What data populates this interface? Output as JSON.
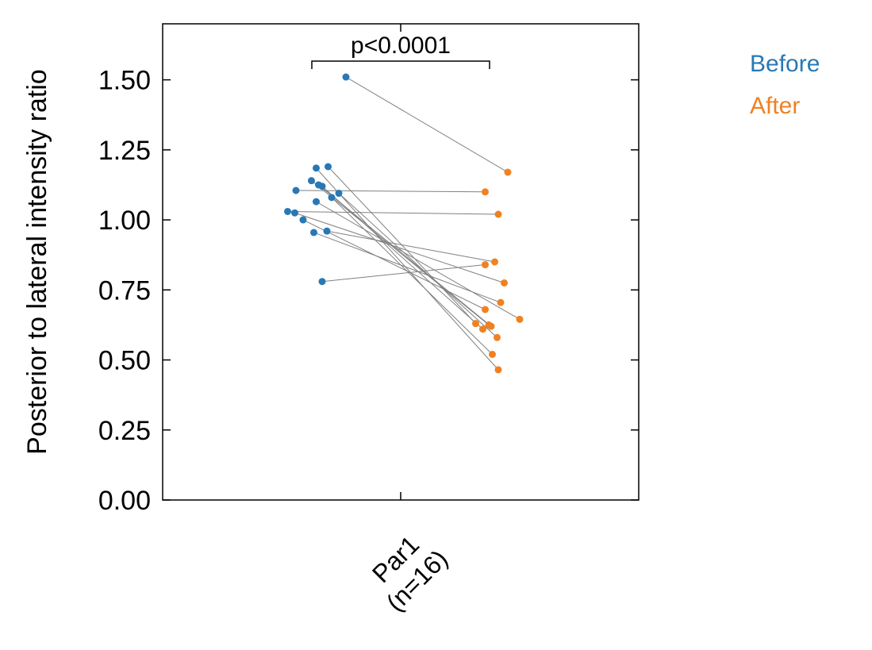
{
  "chart_data": {
    "type": "scatter",
    "subtype": "paired-dot",
    "ylabel": "Posterior to lateral intensity ratio",
    "ylim": [
      0,
      1.7
    ],
    "yticks": [
      "0.00",
      "0.25",
      "0.50",
      "0.75",
      "1.00",
      "1.25",
      "1.50"
    ],
    "category": {
      "line1": "Par1",
      "line2": "(n=16)"
    },
    "significance": "p<0.0001",
    "series": [
      {
        "name": "Before",
        "color": "#2878b5",
        "values": [
          1.51,
          1.19,
          1.185,
          1.14,
          1.125,
          1.12,
          1.095,
          1.08,
          1.065,
          1.105,
          1.03,
          1.025,
          1.0,
          0.96,
          0.955,
          0.78
        ]
      },
      {
        "name": "After",
        "color": "#f08122",
        "values": [
          1.17,
          0.63,
          0.465,
          0.625,
          0.62,
          0.61,
          0.58,
          0.52,
          0.645,
          1.1,
          1.02,
          0.775,
          0.68,
          0.85,
          0.705,
          0.84
        ]
      }
    ],
    "before_jitter": [
      -0.23,
      -0.305,
      -0.355,
      -0.375,
      -0.345,
      -0.33,
      -0.26,
      -0.29,
      -0.355,
      -0.44,
      -0.475,
      -0.445,
      -0.41,
      -0.31,
      -0.365,
      -0.33
    ],
    "after_jitter": [
      0.45,
      0.315,
      0.41,
      0.37,
      0.38,
      0.345,
      0.405,
      0.385,
      0.5,
      0.355,
      0.41,
      0.435,
      0.355,
      0.395,
      0.42,
      0.355
    ],
    "x_range": [
      -1,
      1
    ]
  }
}
